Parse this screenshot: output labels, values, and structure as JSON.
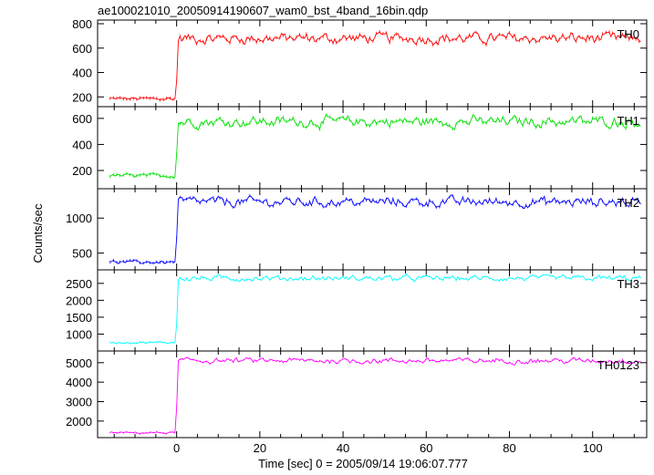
{
  "chart_data": {
    "type": "line",
    "title": "ae100021010_20050914190607_wam0_bst_4band_16bin.qdp",
    "xlabel": "Time [sec] 0 = 2005/09/14 19:06:07.777",
    "ylabel": "Counts/sec",
    "xlim": [
      -19,
      113
    ],
    "x_ticks": [
      0,
      20,
      40,
      60,
      80,
      100
    ],
    "data_start": -16,
    "data_end": 112,
    "burst_onset": 0.6,
    "panels": [
      {
        "name": "TH0",
        "color": "#ff0000",
        "ylim": [
          120,
          830
        ],
        "y_ticks": [
          200,
          400,
          600,
          800
        ],
        "pre_level": 185,
        "post_level": 680,
        "noise": 38,
        "rise_point": 330
      },
      {
        "name": "TH1",
        "color": "#00e000",
        "ylim": [
          60,
          690
        ],
        "y_ticks": [
          200,
          400,
          600
        ],
        "pre_level": 160,
        "post_level": 575,
        "noise": 35,
        "rise_point": 330
      },
      {
        "name": "TH2",
        "color": "#0000ff",
        "ylim": [
          260,
          1420
        ],
        "y_ticks": [
          500,
          1000
        ],
        "pre_level": 370,
        "post_level": 1230,
        "noise": 60,
        "rise_point": 720
      },
      {
        "name": "TH3",
        "color": "#00ffff",
        "ylim": [
          500,
          2900
        ],
        "y_ticks": [
          1000,
          1500,
          2000,
          2500
        ],
        "pre_level": 750,
        "post_level": 2650,
        "noise": 70,
        "rise_point": 1300
      },
      {
        "name": "TH0123",
        "color": "#ff00ff",
        "ylim": [
          1150,
          5600
        ],
        "y_ticks": [
          2000,
          3000,
          4000,
          5000
        ],
        "pre_level": 1400,
        "post_level": 5100,
        "noise": 120,
        "rise_point": 2700
      }
    ]
  }
}
